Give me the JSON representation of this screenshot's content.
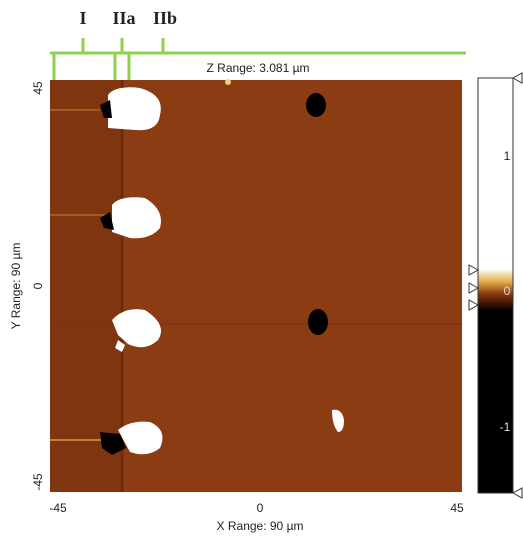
{
  "labels": {
    "region_1": "I",
    "region_2a": "IIa",
    "region_2b": "IIb"
  },
  "z_range": "Z Range: 3.081 µm",
  "y_axis": {
    "title": "Y Range: 90 µm",
    "ticks": [
      45,
      0,
      -45
    ]
  },
  "x_axis": {
    "title": "X Range: 90 µm",
    "ticks": [
      -45,
      0,
      45
    ]
  },
  "colorbar": {
    "ticks": [
      1,
      0,
      -1
    ]
  }
}
